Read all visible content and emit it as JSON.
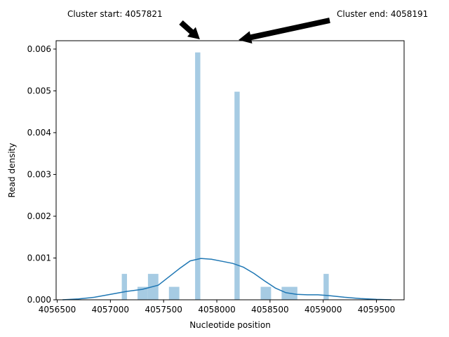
{
  "chart_data": {
    "type": "bar",
    "xlabel": "Nucleotide position",
    "ylabel": "Read density",
    "xlim": [
      4056490,
      4059760
    ],
    "ylim": [
      0,
      0.0062
    ],
    "xticks": [
      4056500,
      4057000,
      4057500,
      4058000,
      4058500,
      4059000,
      4059500
    ],
    "yticks": [
      0.0,
      0.001,
      0.002,
      0.003,
      0.004,
      0.005,
      0.006
    ],
    "ytick_labels": [
      "0.000",
      "0.001",
      "0.002",
      "0.003",
      "0.004",
      "0.005",
      "0.006"
    ],
    "grid": false,
    "bar_color": "#a6cbe3",
    "kde_color": "#1f77b4",
    "histogram": [
      {
        "x0": 4057107,
        "x1": 4057156,
        "density": 0.00062
      },
      {
        "x0": 4057255,
        "x1": 4057353,
        "density": 0.00031
      },
      {
        "x0": 4057353,
        "x1": 4057451,
        "density": 0.00062
      },
      {
        "x0": 4057550,
        "x1": 4057648,
        "density": 0.00031
      },
      {
        "x0": 4057796,
        "x1": 4057845,
        "density": 0.00592
      },
      {
        "x0": 4058166,
        "x1": 4058215,
        "density": 0.00498
      },
      {
        "x0": 4058412,
        "x1": 4058510,
        "density": 0.00031
      },
      {
        "x0": 4058609,
        "x1": 4058757,
        "density": 0.00031
      },
      {
        "x0": 4059003,
        "x1": 4059052,
        "density": 0.00062
      }
    ],
    "kde": {
      "x": [
        4056550,
        4056700,
        4056850,
        4057000,
        4057150,
        4057300,
        4057450,
        4057550,
        4057650,
        4057750,
        4057850,
        4057950,
        4058050,
        4058150,
        4058250,
        4058350,
        4058450,
        4058550,
        4058650,
        4058750,
        4058850,
        4058950,
        4059050,
        4059200,
        4059350,
        4059500,
        4059640
      ],
      "y": [
        0.0,
        2e-05,
        6e-05,
        0.00013,
        0.0002,
        0.00025,
        0.00035,
        0.00055,
        0.00075,
        0.00093,
        0.00099,
        0.00097,
        0.00092,
        0.00087,
        0.00078,
        0.00063,
        0.00045,
        0.00028,
        0.00017,
        0.00013,
        0.00012,
        0.00012,
        0.0001,
        6e-05,
        3e-05,
        1e-05,
        0.0
      ]
    },
    "annotations": [
      {
        "text": "Cluster start: 4057821",
        "x": 4057821
      },
      {
        "text": "Cluster end: 4058191",
        "x": 4058191
      }
    ]
  }
}
